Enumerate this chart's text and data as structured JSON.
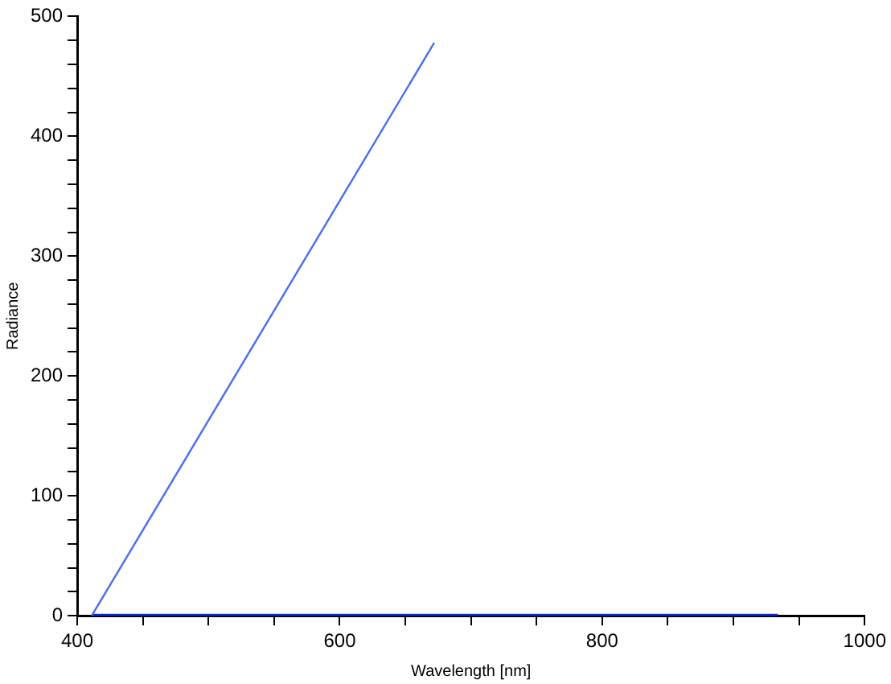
{
  "chart_data": {
    "type": "line",
    "xlabel": "Wavelength [nm]",
    "ylabel": "Radiance",
    "series": [
      {
        "color": "#4a6cf0",
        "x": [
          411,
          672
        ],
        "values": [
          0,
          478
        ]
      },
      {
        "color": "#1030c8",
        "x": [
          411,
          934
        ],
        "values": [
          0,
          0
        ]
      }
    ],
    "xlim": [
      400,
      1000
    ],
    "ylim": [
      0,
      500
    ],
    "xticks": [
      400,
      {
        "value": 450,
        "label": null
      },
      {
        "value": 500,
        "label": null
      },
      {
        "value": 550,
        "label": null
      },
      600,
      {
        "value": 650,
        "label": null
      },
      {
        "value": 700,
        "label": null
      },
      {
        "value": 750,
        "label": null
      },
      800,
      {
        "value": 850,
        "label": null
      },
      {
        "value": 900,
        "label": null
      },
      {
        "value": 950,
        "label": null
      },
      1000
    ],
    "yticks": [
      0,
      {
        "value": 20,
        "label": null
      },
      {
        "value": 40,
        "label": null
      },
      {
        "value": 60,
        "label": null
      },
      {
        "value": 80,
        "label": null
      },
      100,
      {
        "value": 120,
        "label": null
      },
      {
        "value": 140,
        "label": null
      },
      {
        "value": 160,
        "label": null
      },
      {
        "value": 180,
        "label": null
      },
      200,
      {
        "value": 220,
        "label": null
      },
      {
        "value": 240,
        "label": null
      },
      {
        "value": 260,
        "label": null
      },
      {
        "value": 280,
        "label": null
      },
      300,
      {
        "value": 320,
        "label": null
      },
      {
        "value": 340,
        "label": null
      },
      {
        "value": 360,
        "label": null
      },
      {
        "value": 380,
        "label": null
      },
      400,
      {
        "value": 420,
        "label": null
      },
      {
        "value": 440,
        "label": null
      },
      {
        "value": 460,
        "label": null
      },
      {
        "value": 480,
        "label": null
      },
      500
    ],
    "grid": false,
    "legend": false,
    "marker": "none",
    "line_style": "solid"
  }
}
